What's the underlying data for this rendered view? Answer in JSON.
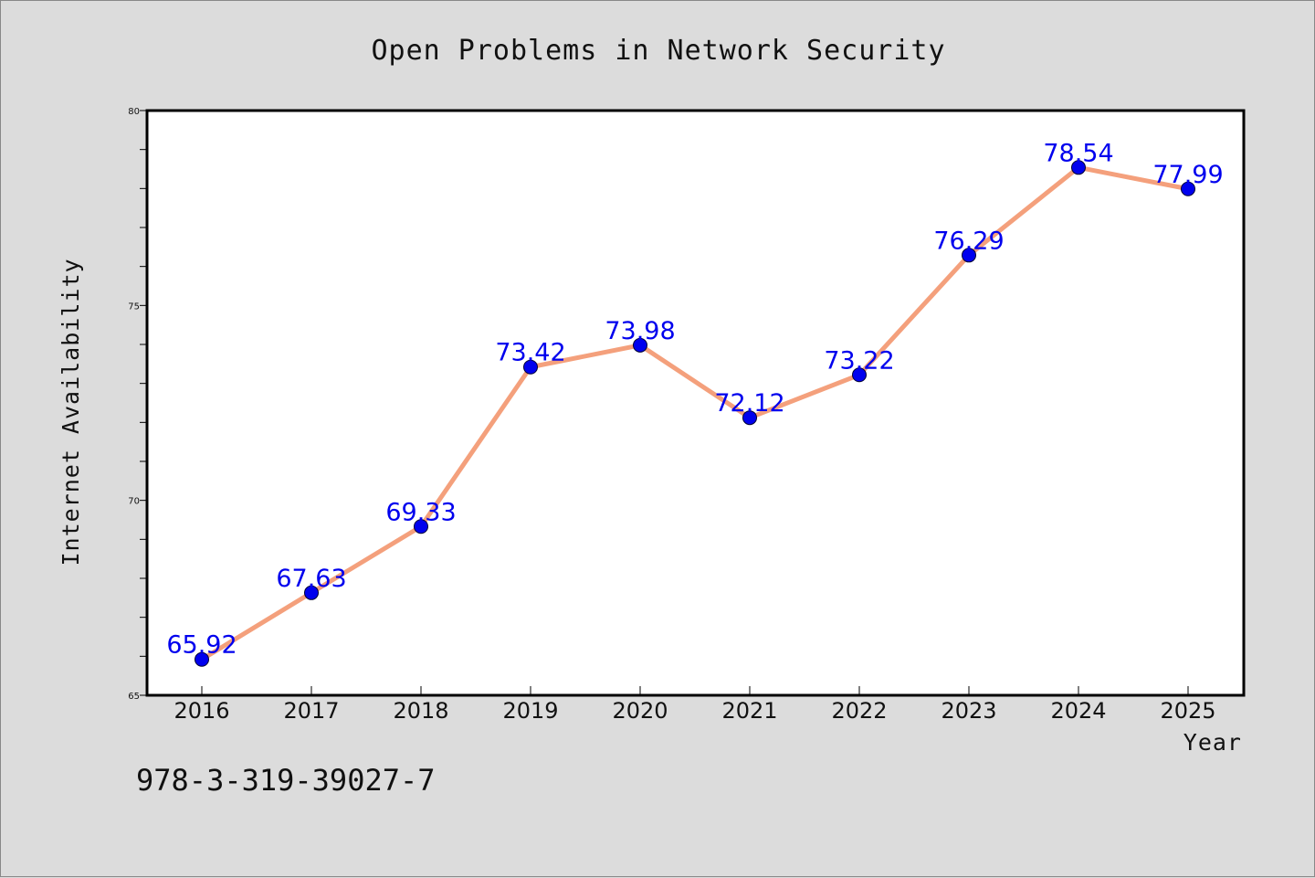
{
  "chart_data": {
    "type": "line",
    "title": "Open Problems in Network Security",
    "xlabel": "Year",
    "ylabel": "Internet Availability",
    "categories": [
      "2016",
      "2017",
      "2018",
      "2019",
      "2020",
      "2021",
      "2022",
      "2023",
      "2024",
      "2025"
    ],
    "series": [
      {
        "values": [
          65.92,
          67.63,
          69.33,
          73.42,
          73.98,
          72.12,
          73.22,
          76.29,
          78.54,
          77.99
        ]
      }
    ],
    "data_labels": [
      "65.92",
      "67.63",
      "69.33",
      "73.42",
      "73.98",
      "72.12",
      "73.22",
      "76.29",
      "78.54",
      "77.99"
    ],
    "ylim": [
      65,
      80
    ],
    "y_ticks": [
      "65",
      "70",
      "75",
      "80"
    ],
    "y_minor_step": 1,
    "grid": false,
    "colors": {
      "line": "#f4a07c",
      "marker": "#0000ee",
      "label": "#0000ee",
      "background": "#dcdcdc",
      "plot_background": "#ffffff"
    }
  },
  "footer": {
    "isbn": "978-3-319-39027-7"
  }
}
